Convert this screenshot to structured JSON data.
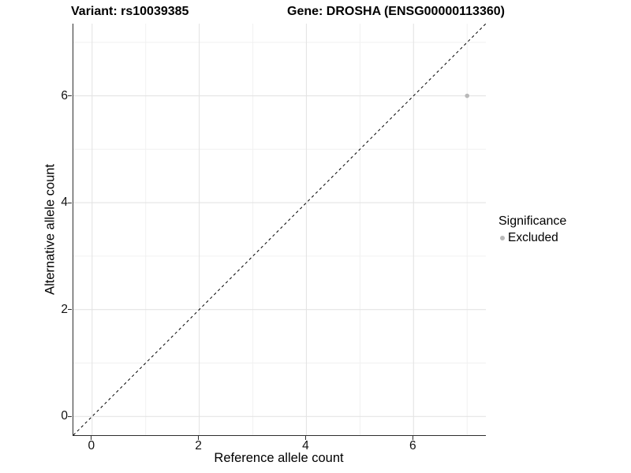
{
  "title": {
    "variant": "Variant: rs10039385",
    "gene": "Gene: DROSHA (ENSG00000113360)"
  },
  "legend": {
    "title": "Significance",
    "items": [
      {
        "label": "Excluded",
        "color": "#b9b9b9"
      }
    ]
  },
  "chart_data": {
    "type": "scatter",
    "title": "Variant: rs10039385 — Gene: DROSHA (ENSG00000113360)",
    "xlabel": "Reference allele count",
    "ylabel": "Alternative allele count",
    "xlim": [
      -0.35,
      7.35
    ],
    "ylim": [
      -0.35,
      7.35
    ],
    "x_ticks": [
      0,
      2,
      4,
      6
    ],
    "y_ticks": [
      0,
      2,
      4,
      6
    ],
    "x_minor_ticks": [
      1,
      3,
      5,
      7
    ],
    "y_minor_ticks": [
      1,
      3,
      5,
      7
    ],
    "grid": true,
    "legend_position": "right",
    "identity_line": {
      "slope": 1,
      "intercept": 0,
      "style": "dashed",
      "color": "#000000"
    },
    "series": [
      {
        "name": "Excluded",
        "color": "#b9b9b9",
        "points": [
          {
            "x": 7,
            "y": 6
          }
        ]
      }
    ]
  },
  "colors": {
    "background": "#ffffff",
    "grid_major": "#e4e4e4",
    "grid_minor": "#f1f1f1",
    "axis_line": "#2e2e2e",
    "text": "#000000",
    "point": "#b9b9b9"
  }
}
